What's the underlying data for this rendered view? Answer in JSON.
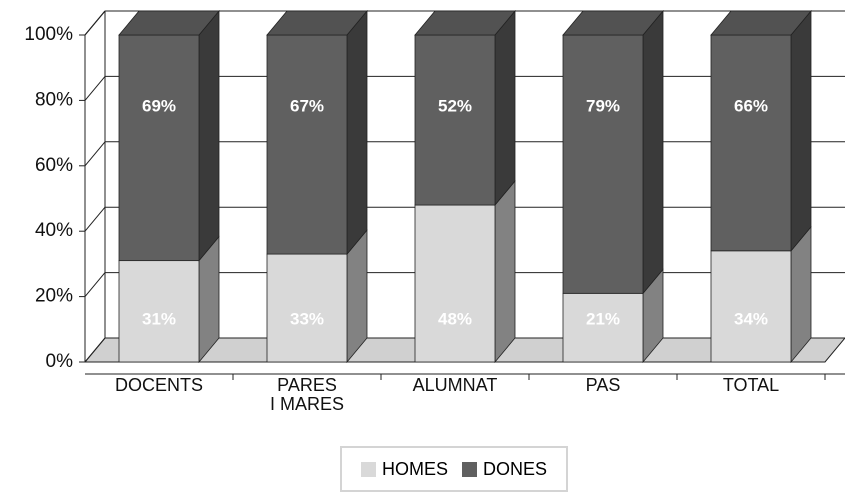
{
  "chart_data": {
    "type": "bar3d_stacked",
    "categories": [
      "DOCENTS",
      "PARES\nI MARES",
      "ALUMNAT",
      "PAS",
      "TOTAL"
    ],
    "series": [
      {
        "name": "HOMES",
        "color": "#d9d9d9",
        "values": [
          31,
          33,
          48,
          21,
          34
        ],
        "value_labels": [
          "31%",
          "33%",
          "48%",
          "21%",
          "34%"
        ]
      },
      {
        "name": "DONES",
        "color": "#606060",
        "values": [
          69,
          67,
          52,
          79,
          66
        ],
        "value_labels": [
          "69%",
          "67%",
          "52%",
          "79%",
          "66%"
        ]
      }
    ],
    "ylim": [
      0,
      100
    ],
    "yticks": [
      {
        "value": 0,
        "label": "0%"
      },
      {
        "value": 20,
        "label": "20%"
      },
      {
        "value": 40,
        "label": "40%"
      },
      {
        "value": 60,
        "label": "60%"
      },
      {
        "value": 80,
        "label": "80%"
      },
      {
        "value": 100,
        "label": "100%"
      }
    ],
    "grid": true,
    "legend": "bottom"
  }
}
